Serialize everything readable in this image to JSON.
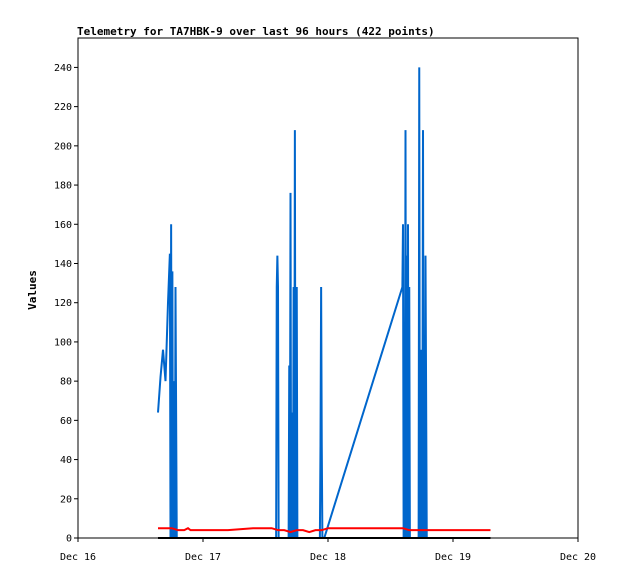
{
  "chart_data": {
    "type": "line",
    "title": "Telemetry for TA7HBK-9 over last 96 hours (422 points)",
    "xlabel": "",
    "ylabel": "Values",
    "x_tick_labels": [
      "Dec 16",
      "Dec 17",
      "Dec 18",
      "Dec 19",
      "Dec 20"
    ],
    "x_tick_values": [
      0,
      1,
      2,
      3,
      4
    ],
    "xlim": [
      0,
      4
    ],
    "ylim": [
      0,
      255
    ],
    "y_ticks": [
      0,
      20,
      40,
      60,
      80,
      100,
      120,
      140,
      160,
      180,
      200,
      220,
      240
    ],
    "grid": false,
    "series": [
      {
        "color": "#0066cc",
        "x": [
          0.64,
          0.66,
          0.68,
          0.7,
          0.72,
          0.735,
          0.74,
          0.745,
          0.75,
          0.755,
          0.76,
          0.765,
          0.77,
          0.775,
          0.78,
          0.79,
          0.8,
          0.81,
          0.815,
          0.82,
          0.825,
          1.585,
          1.59,
          1.595,
          1.6,
          1.605,
          1.685,
          1.69,
          1.695,
          1.7,
          1.705,
          1.71,
          1.715,
          1.72,
          1.725,
          1.73,
          1.735,
          1.74,
          1.745,
          1.75,
          1.755,
          1.935,
          1.94,
          1.945,
          1.95,
          1.955,
          1.96,
          1.965,
          1.97,
          2.595,
          2.6,
          2.605,
          2.61,
          2.615,
          2.62,
          2.625,
          2.63,
          2.635,
          2.64,
          2.645,
          2.65,
          2.655,
          2.66,
          2.665,
          2.67,
          2.675,
          2.725,
          2.73,
          2.735,
          2.745,
          2.75,
          2.755,
          2.76,
          2.765,
          2.77,
          2.775,
          2.78,
          2.785,
          2.79,
          2.795,
          2.8
        ],
        "y": [
          64,
          82,
          96,
          80,
          120,
          145,
          0,
          160,
          0,
          136,
          0,
          80,
          52,
          0,
          128,
          0,
          0,
          0,
          0,
          0,
          0,
          0,
          128,
          144,
          128,
          0,
          0,
          88,
          0,
          176,
          0,
          32,
          64,
          0,
          128,
          0,
          208,
          0,
          8,
          128,
          0,
          0,
          48,
          128,
          48,
          0,
          0,
          0,
          0,
          128,
          160,
          0,
          80,
          0,
          208,
          0,
          144,
          0,
          160,
          0,
          128,
          0,
          0,
          0,
          0,
          0,
          0,
          240,
          0,
          96,
          0,
          32,
          208,
          0,
          88,
          0,
          144,
          72,
          0,
          0,
          0
        ]
      },
      {
        "color": "#ff0000",
        "x": [
          0.64,
          0.75,
          0.8,
          0.85,
          0.88,
          0.9,
          1.1,
          1.2,
          1.4,
          1.5,
          1.55,
          1.6,
          1.65,
          1.7,
          1.75,
          1.8,
          1.85,
          1.9,
          1.95,
          2.0,
          2.2,
          2.4,
          2.6,
          2.65,
          2.7,
          2.75,
          2.8,
          2.85,
          3.0,
          3.2,
          3.3
        ],
        "y": [
          5,
          5,
          4,
          4,
          5,
          4,
          4,
          4,
          5,
          5,
          5,
          4,
          4,
          3,
          4,
          4,
          3,
          4,
          4,
          5,
          5,
          5,
          5,
          4,
          4,
          4,
          4,
          4,
          4,
          4,
          4
        ]
      },
      {
        "color": "#000000",
        "x": [
          0.64,
          3.3
        ],
        "y": [
          0,
          0
        ]
      }
    ]
  }
}
